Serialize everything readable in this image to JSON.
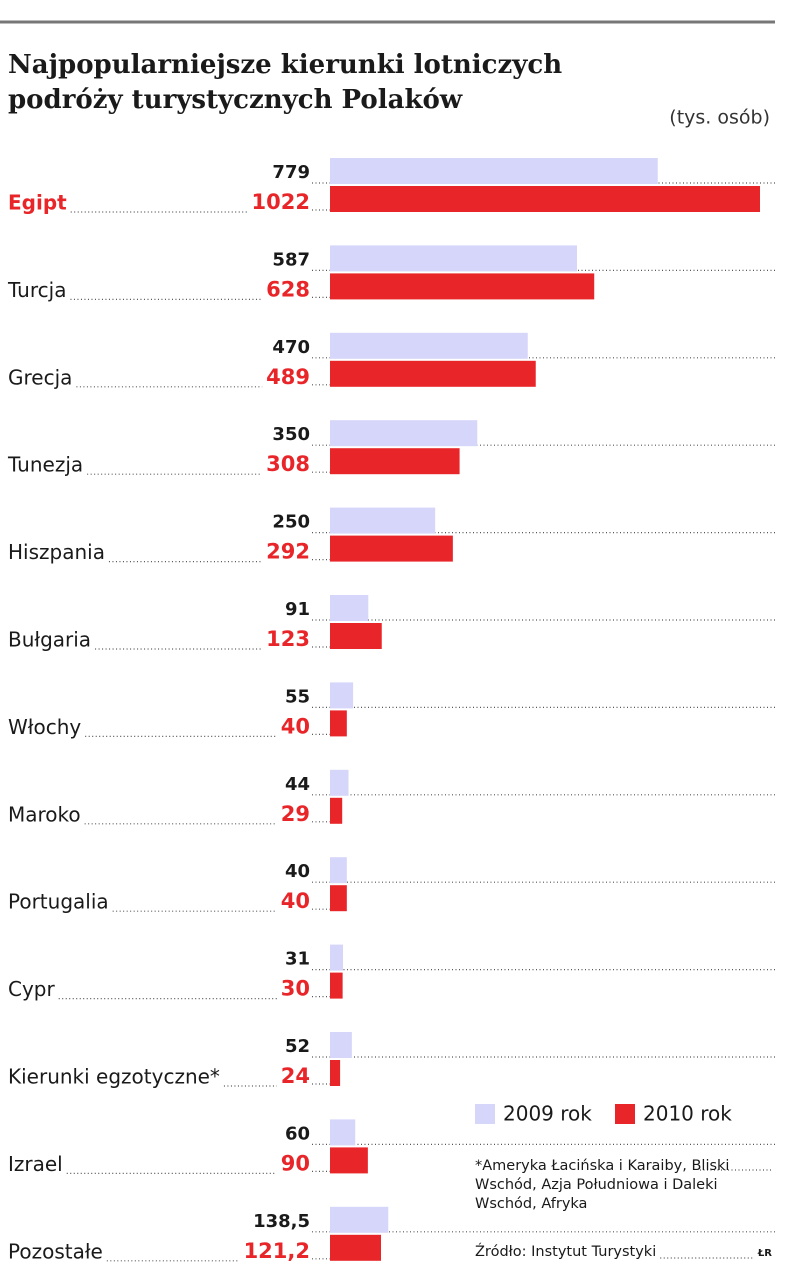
{
  "chart_data": {
    "type": "bar",
    "orientation": "horizontal",
    "title": "Najpopularniejsze kierunki lotniczych podróży turystycznych Polaków",
    "unit": "(tys. osób)",
    "categories": [
      "Egipt",
      "Turcja",
      "Grecja",
      "Tunezja",
      "Hiszpania",
      "Bułgaria",
      "Włochy",
      "Maroko",
      "Portugalia",
      "Cypr",
      "Kierunki egzotyczne*",
      "Izrael",
      "Pozostałe"
    ],
    "series": [
      {
        "name": "2009 rok",
        "color": "#d6d6fa",
        "label_color": "#1a1a1a",
        "values": [
          779,
          587,
          470,
          350,
          250,
          91,
          55,
          44,
          40,
          31,
          52,
          60,
          138.5
        ],
        "value_labels": [
          "779",
          "587",
          "470",
          "350",
          "250",
          "91",
          "55",
          "44",
          "40",
          "31",
          "52",
          "60",
          "138,5"
        ]
      },
      {
        "name": "2010 rok",
        "color": "#e8262a",
        "label_color": "#e8262a",
        "values": [
          1022,
          628,
          489,
          308,
          292,
          123,
          40,
          29,
          40,
          30,
          24,
          90,
          121.2
        ],
        "value_labels": [
          "1022",
          "628",
          "489",
          "308",
          "292",
          "123",
          "40",
          "29",
          "40",
          "30",
          "24",
          "90",
          "121,2"
        ]
      }
    ],
    "highlight": 0,
    "highlight_color": "#e8262a",
    "footnote": "*Ameryka Łacińska i Karaiby, Bliski Wschód, Azja Południowa i Daleki Wschód, Afryka",
    "source": "Źródło: Instytut Turystyki",
    "credit": "ŁR"
  }
}
